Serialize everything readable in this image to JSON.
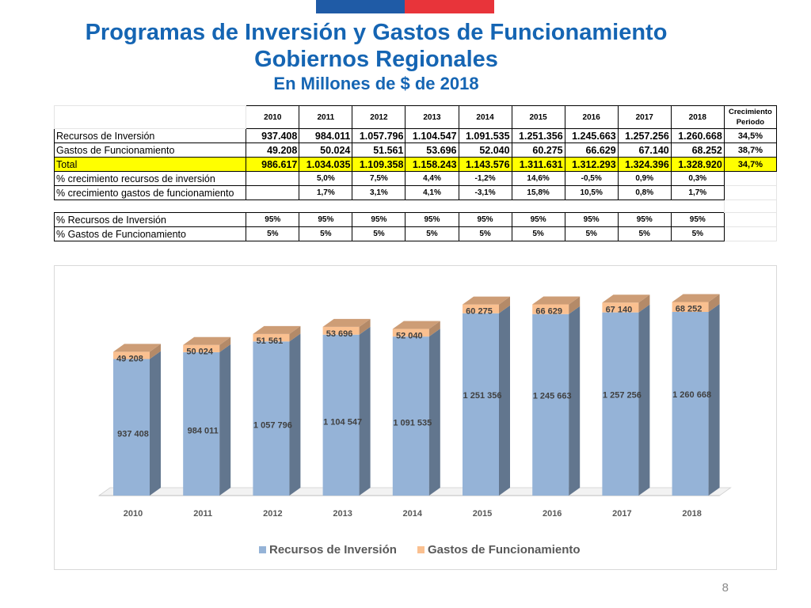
{
  "title": {
    "line1": "Programas de Inversión y Gastos de Funcionamiento",
    "line2": "Gobiernos Regionales",
    "line3": "En Millones de $ de 2018"
  },
  "table": {
    "years": [
      "2010",
      "2011",
      "2012",
      "2013",
      "2014",
      "2015",
      "2016",
      "2017",
      "2018"
    ],
    "growth_header": "Crecimiento Periodo",
    "rows": [
      {
        "label": "Recursos de Inversión",
        "values": [
          "937.408",
          "984.011",
          "1.057.796",
          "1.104.547",
          "1.091.535",
          "1.251.356",
          "1.245.663",
          "1.257.256",
          "1.260.668"
        ],
        "growth": "34,5%"
      },
      {
        "label": "Gastos de Funcionamiento",
        "values": [
          "49.208",
          "50.024",
          "51.561",
          "53.696",
          "52.040",
          "60.275",
          "66.629",
          "67.140",
          "68.252"
        ],
        "growth": "38,7%"
      },
      {
        "label": "Total",
        "values": [
          "986.617",
          "1.034.035",
          "1.109.358",
          "1.158.243",
          "1.143.576",
          "1.311.631",
          "1.312.293",
          "1.324.396",
          "1.328.920"
        ],
        "growth": "34,7%"
      },
      {
        "label": "% crecimiento recursos de inversión",
        "values": [
          "",
          "5,0%",
          "7,5%",
          "4,4%",
          "-1,2%",
          "14,6%",
          "-0,5%",
          "0,9%",
          "0,3%"
        ]
      },
      {
        "label": "% crecimiento gastos de funcionamiento",
        "values": [
          "",
          "1,7%",
          "3,1%",
          "4,1%",
          "-3,1%",
          "15,8%",
          "10,5%",
          "0,8%",
          "1,7%"
        ]
      },
      {
        "label": "% Recursos de Inversión",
        "values": [
          "95%",
          "95%",
          "95%",
          "95%",
          "95%",
          "95%",
          "95%",
          "95%",
          "95%"
        ]
      },
      {
        "label": "% Gastos de Funcionamiento",
        "values": [
          "5%",
          "5%",
          "5%",
          "5%",
          "5%",
          "5%",
          "5%",
          "5%",
          "5%"
        ]
      }
    ]
  },
  "chart_data": {
    "type": "bar",
    "stacked": true,
    "style": "3d-column",
    "categories": [
      "2010",
      "2011",
      "2012",
      "2013",
      "2014",
      "2015",
      "2016",
      "2017",
      "2018"
    ],
    "series": [
      {
        "name": "Recursos de Inversión",
        "color": "#95b3d7",
        "values": [
          937408,
          984011,
          1057796,
          1104547,
          1091535,
          1251356,
          1245663,
          1257256,
          1260668
        ],
        "labels": [
          "937 408",
          "984 011",
          "1 057 796",
          "1 104 547",
          "1 091 535",
          "1 251 356",
          "1 245 663",
          "1 257 256",
          "1 260 668"
        ]
      },
      {
        "name": "Gastos de Funcionamiento",
        "color": "#fac090",
        "values": [
          49208,
          50024,
          51561,
          53696,
          52040,
          60275,
          66629,
          67140,
          68252
        ],
        "labels": [
          "49 208",
          "50 024",
          "51 561",
          "53 696",
          "52 040",
          "60 275",
          "66 629",
          "67 140",
          "68 252"
        ]
      }
    ],
    "legend_position": "bottom",
    "grid": false
  },
  "page_number": "8"
}
